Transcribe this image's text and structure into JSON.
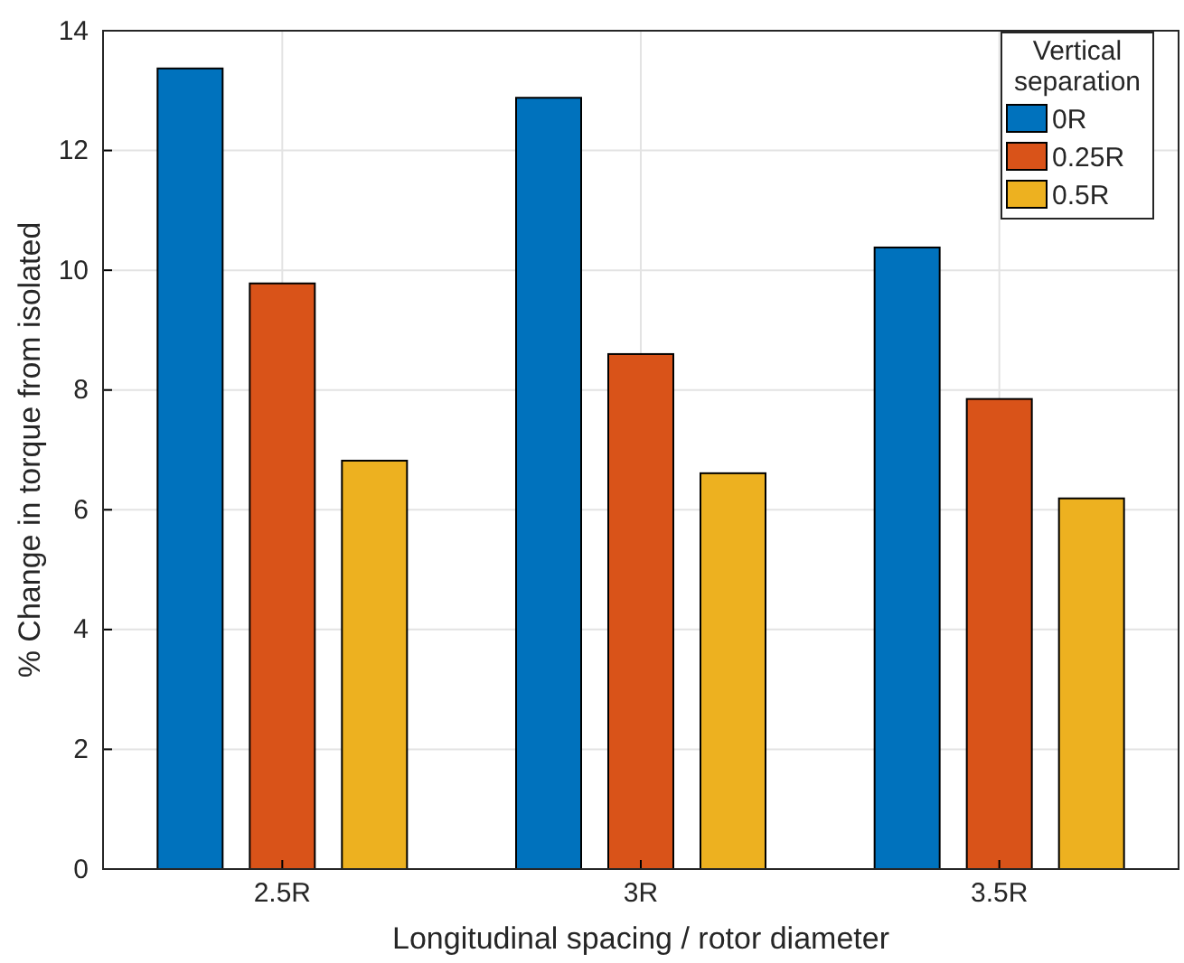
{
  "chart_data": {
    "type": "bar",
    "xlabel": "Longitudinal spacing / rotor diameter",
    "ylabel": "% Change in torque from isolated",
    "categories": [
      "2.5R",
      "3R",
      "3.5R"
    ],
    "series": [
      {
        "name": "0R",
        "color": "#0072bd",
        "values": [
          13.37,
          12.88,
          10.38
        ]
      },
      {
        "name": "0.25R",
        "color": "#d95319",
        "values": [
          9.78,
          8.6,
          7.85
        ]
      },
      {
        "name": "0.5R",
        "color": "#edb120",
        "values": [
          6.82,
          6.61,
          6.19
        ]
      }
    ],
    "ylim": [
      0,
      14
    ],
    "yticks": [
      0,
      2,
      4,
      6,
      8,
      10,
      12,
      14
    ],
    "grid": true,
    "legend": "top right",
    "legend_title": "Vertical separation"
  }
}
